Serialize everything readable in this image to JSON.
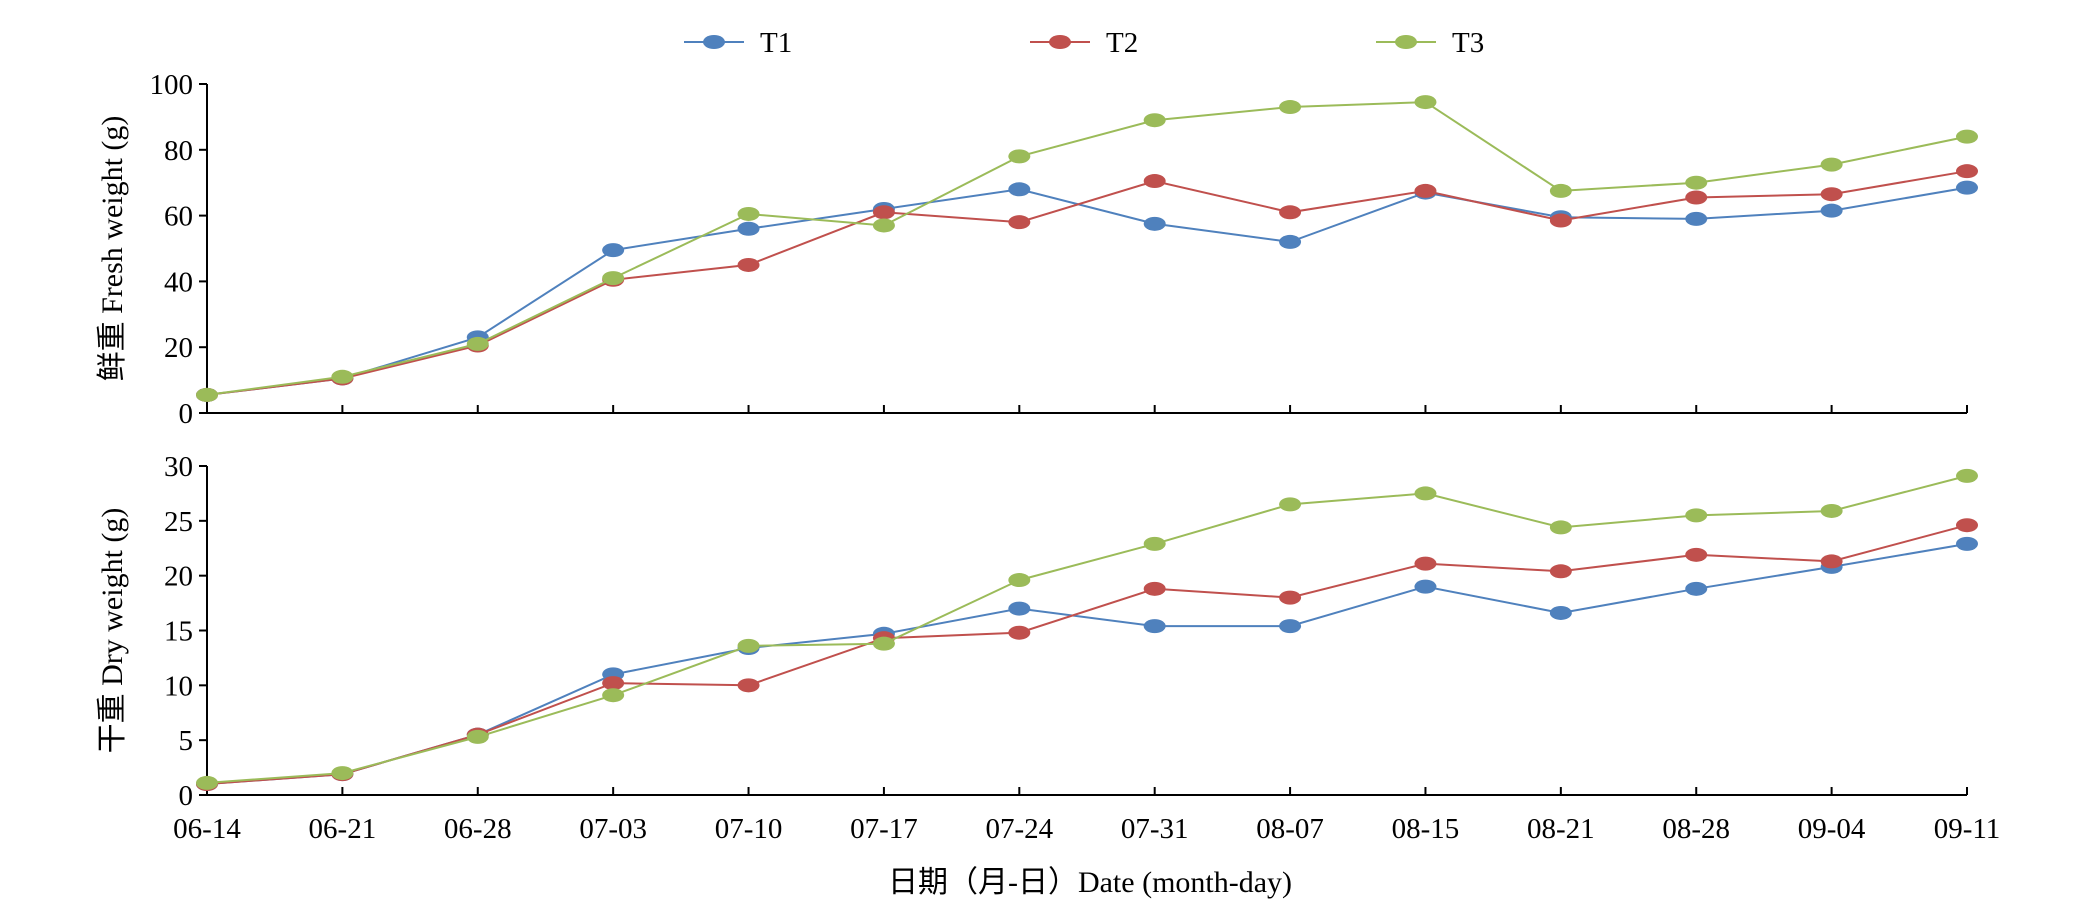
{
  "chart_data": {
    "type": "line",
    "legend": {
      "position": "top-center",
      "entries": [
        {
          "name": "T1",
          "color": "#4F81BD"
        },
        {
          "name": "T2",
          "color": "#C0504D"
        },
        {
          "name": "T3",
          "color": "#9BBB59"
        }
      ]
    },
    "categories": [
      "06-14",
      "06-21",
      "06-28",
      "07-03",
      "07-10",
      "07-17",
      "07-24",
      "07-31",
      "08-07",
      "08-15",
      "08-21",
      "08-28",
      "09-04",
      "09-11"
    ],
    "xlabel": "日期（月-日）Date (month-day)",
    "panels": [
      {
        "ylabel": "鲜重 Fresh weight (g)",
        "ylim": [
          0,
          100
        ],
        "yticks": [
          "0",
          "20",
          "40",
          "60",
          "80",
          "100"
        ],
        "series": [
          {
            "name": "T1",
            "color": "#4F81BD",
            "values": [
              5.5,
              10.5,
              23,
              49.5,
              56,
              62,
              68,
              57.5,
              52,
              67,
              59.5,
              59,
              61.5,
              68.5
            ]
          },
          {
            "name": "T2",
            "color": "#C0504D",
            "values": [
              5.5,
              10.5,
              20.5,
              40.5,
              45,
              61,
              58,
              70.5,
              61,
              67.5,
              58.5,
              65.5,
              66.5,
              73.5
            ]
          },
          {
            "name": "T3",
            "color": "#9BBB59",
            "values": [
              5.5,
              11,
              21,
              41,
              60.5,
              57,
              78,
              89,
              93,
              94.5,
              67.5,
              70,
              75.5,
              84
            ]
          }
        ]
      },
      {
        "ylabel": "干重 Dry weight (g)",
        "ylim": [
          0,
          30
        ],
        "yticks": [
          "0",
          "5",
          "10",
          "15",
          "20",
          "25",
          "30"
        ],
        "series": [
          {
            "name": "T1",
            "color": "#4F81BD",
            "values": [
              1.0,
              1.9,
              5.5,
              11.0,
              13.4,
              14.7,
              17.0,
              15.4,
              15.4,
              19.0,
              16.6,
              18.8,
              20.8,
              22.9
            ]
          },
          {
            "name": "T2",
            "color": "#C0504D",
            "values": [
              1.0,
              1.9,
              5.5,
              10.2,
              10.0,
              14.3,
              14.8,
              18.8,
              18.0,
              21.1,
              20.4,
              21.9,
              21.3,
              24.6
            ]
          },
          {
            "name": "T3",
            "color": "#9BBB59",
            "values": [
              1.1,
              2.0,
              5.3,
              9.1,
              13.6,
              13.8,
              19.6,
              22.9,
              26.5,
              27.5,
              24.4,
              25.5,
              25.9,
              29.1
            ]
          }
        ]
      }
    ]
  }
}
